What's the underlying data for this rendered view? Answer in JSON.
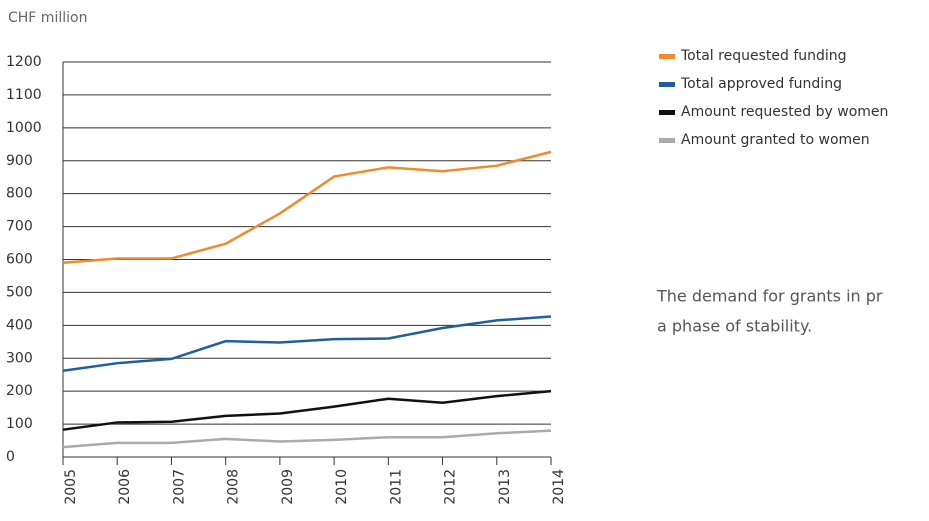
{
  "chart_data": {
    "type": "line",
    "y_axis_label": "CHF million",
    "categories": [
      "2005",
      "2006",
      "2007",
      "2008",
      "2009",
      "2010",
      "2011",
      "2012",
      "2013",
      "2014"
    ],
    "series": [
      {
        "name": "Total requested funding",
        "color": "#f08a2c",
        "values": [
          590,
          603,
          603,
          648,
          740,
          852,
          880,
          868,
          885,
          927
        ]
      },
      {
        "name": "Total approved funding",
        "color": "#1f5fa0",
        "values": [
          262,
          285,
          298,
          352,
          348,
          358,
          360,
          392,
          415,
          427
        ]
      },
      {
        "name": "Amount requested by women",
        "color": "#111111",
        "values": [
          83,
          105,
          107,
          125,
          132,
          153,
          177,
          165,
          185,
          200
        ]
      },
      {
        "name": "Amount granted to women",
        "color": "#aaaaaa",
        "values": [
          30,
          43,
          43,
          55,
          47,
          52,
          60,
          60,
          72,
          80
        ]
      }
    ],
    "ylim": [
      0,
      1200
    ],
    "yticks": [
      0,
      100,
      200,
      300,
      400,
      500,
      600,
      700,
      800,
      900,
      1000,
      1100,
      1200
    ],
    "grid": true,
    "legend": "right",
    "annotation": [
      "The demand for grants in pr",
      "a phase of stability."
    ]
  }
}
